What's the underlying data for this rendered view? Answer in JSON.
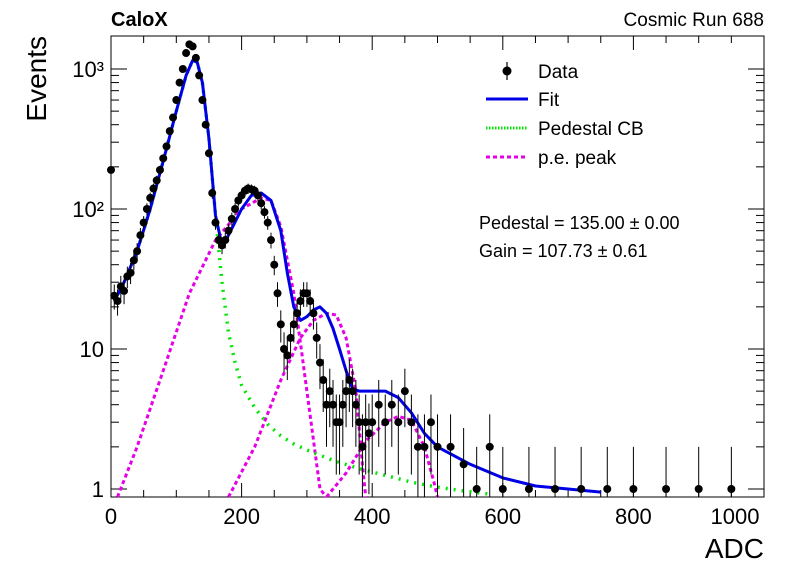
{
  "header": {
    "experiment": "CaloX",
    "run_label": "Cosmic Run 688"
  },
  "fit_results": {
    "pedestal": "Pedestal = 135.00 ± 0.00",
    "gain": "Gain = 107.73 ± 0.61"
  },
  "colors": {
    "data": "#000000",
    "fit": "#0000e6",
    "pedestal": "#00e600",
    "pe_peak": "#e600e6"
  },
  "chart_data": {
    "type": "scatter",
    "title": "",
    "xlabel": "ADC",
    "ylabel": "Events",
    "xlim": [
      0,
      1000
    ],
    "ylim": [
      0.9,
      1800
    ],
    "yscale": "log",
    "grid": false,
    "legend_position": "top-right",
    "x_ticks": [
      "0",
      "200",
      "400",
      "600",
      "800",
      "1000"
    ],
    "y_ticks": [
      "1",
      "10",
      "10²",
      "10³"
    ],
    "legend": [
      {
        "label": "Data",
        "style": "marker"
      },
      {
        "label": "Fit",
        "style": "solid"
      },
      {
        "label": "Pedestal CB",
        "style": "dotted"
      },
      {
        "label": "p.e. peak",
        "style": "dashed"
      }
    ],
    "data_series": {
      "name": "Data",
      "points": [
        [
          0,
          190
        ],
        [
          5,
          24
        ],
        [
          10,
          22
        ],
        [
          15,
          28
        ],
        [
          20,
          26
        ],
        [
          25,
          33
        ],
        [
          30,
          35
        ],
        [
          35,
          43
        ],
        [
          40,
          50
        ],
        [
          45,
          65
        ],
        [
          50,
          80
        ],
        [
          55,
          100
        ],
        [
          60,
          120
        ],
        [
          65,
          140
        ],
        [
          70,
          160
        ],
        [
          75,
          190
        ],
        [
          80,
          230
        ],
        [
          85,
          280
        ],
        [
          90,
          360
        ],
        [
          95,
          450
        ],
        [
          100,
          600
        ],
        [
          105,
          800
        ],
        [
          110,
          1000
        ],
        [
          115,
          1300
        ],
        [
          120,
          1500
        ],
        [
          125,
          1450
        ],
        [
          130,
          1200
        ],
        [
          135,
          900
        ],
        [
          140,
          600
        ],
        [
          145,
          400
        ],
        [
          150,
          250
        ],
        [
          155,
          130
        ],
        [
          160,
          80
        ],
        [
          165,
          60
        ],
        [
          170,
          55
        ],
        [
          175,
          60
        ],
        [
          180,
          70
        ],
        [
          185,
          85
        ],
        [
          190,
          100
        ],
        [
          195,
          115
        ],
        [
          200,
          125
        ],
        [
          205,
          135
        ],
        [
          210,
          140
        ],
        [
          215,
          138
        ],
        [
          220,
          135
        ],
        [
          225,
          125
        ],
        [
          230,
          110
        ],
        [
          235,
          95
        ],
        [
          240,
          80
        ],
        [
          245,
          60
        ],
        [
          250,
          40
        ],
        [
          255,
          25
        ],
        [
          260,
          15
        ],
        [
          265,
          10
        ],
        [
          270,
          9
        ],
        [
          275,
          12
        ],
        [
          280,
          15
        ],
        [
          285,
          18
        ],
        [
          290,
          22
        ],
        [
          295,
          25
        ],
        [
          300,
          25
        ],
        [
          305,
          22
        ],
        [
          310,
          18
        ],
        [
          315,
          12
        ],
        [
          320,
          8
        ],
        [
          325,
          6
        ],
        [
          330,
          4
        ],
        [
          335,
          5
        ],
        [
          340,
          4
        ],
        [
          345,
          3
        ],
        [
          350,
          3
        ],
        [
          355,
          4
        ],
        [
          360,
          5
        ],
        [
          365,
          6
        ],
        [
          370,
          5
        ],
        [
          375,
          4
        ],
        [
          380,
          3
        ],
        [
          385,
          2
        ],
        [
          390,
          3
        ],
        [
          395,
          2.5
        ],
        [
          400,
          3
        ],
        [
          410,
          4
        ],
        [
          420,
          3
        ],
        [
          430,
          4
        ],
        [
          440,
          3
        ],
        [
          450,
          5
        ],
        [
          460,
          3
        ],
        [
          470,
          2
        ],
        [
          480,
          2
        ],
        [
          490,
          3
        ],
        [
          500,
          2
        ],
        [
          520,
          2
        ],
        [
          540,
          1.5
        ],
        [
          560,
          1
        ],
        [
          580,
          2
        ],
        [
          600,
          1
        ],
        [
          640,
          1
        ],
        [
          680,
          1
        ],
        [
          720,
          1
        ],
        [
          760,
          1
        ],
        [
          800,
          1
        ],
        [
          850,
          1
        ],
        [
          900,
          1
        ],
        [
          950,
          1
        ]
      ]
    },
    "fit_curve": {
      "name": "Fit",
      "points": [
        [
          5,
          22
        ],
        [
          20,
          30
        ],
        [
          40,
          50
        ],
        [
          60,
          100
        ],
        [
          80,
          220
        ],
        [
          100,
          500
        ],
        [
          115,
          900
        ],
        [
          125,
          1150
        ],
        [
          132,
          1120
        ],
        [
          140,
          800
        ],
        [
          150,
          320
        ],
        [
          160,
          90
        ],
        [
          170,
          55
        ],
        [
          180,
          65
        ],
        [
          200,
          100
        ],
        [
          215,
          125
        ],
        [
          230,
          130
        ],
        [
          245,
          115
        ],
        [
          260,
          70
        ],
        [
          270,
          35
        ],
        [
          280,
          20
        ],
        [
          290,
          16
        ],
        [
          300,
          17
        ],
        [
          310,
          19
        ],
        [
          320,
          20
        ],
        [
          330,
          18
        ],
        [
          340,
          14
        ],
        [
          350,
          10
        ],
        [
          360,
          7
        ],
        [
          370,
          5.2
        ],
        [
          380,
          5
        ],
        [
          400,
          5
        ],
        [
          420,
          5
        ],
        [
          440,
          4.5
        ],
        [
          460,
          3.5
        ],
        [
          480,
          2.5
        ],
        [
          500,
          2
        ],
        [
          550,
          1.5
        ],
        [
          600,
          1.2
        ],
        [
          650,
          1.05
        ],
        [
          700,
          1
        ],
        [
          750,
          0.95
        ]
      ]
    },
    "pedestal_curve": {
      "name": "Pedestal CB",
      "points": [
        [
          5,
          22
        ],
        [
          20,
          30
        ],
        [
          40,
          50
        ],
        [
          60,
          100
        ],
        [
          80,
          220
        ],
        [
          100,
          500
        ],
        [
          115,
          900
        ],
        [
          125,
          1150
        ],
        [
          132,
          1120
        ],
        [
          140,
          800
        ],
        [
          150,
          320
        ],
        [
          160,
          90
        ],
        [
          170,
          30
        ],
        [
          180,
          13
        ],
        [
          190,
          8
        ],
        [
          200,
          5.5
        ],
        [
          220,
          3.8
        ],
        [
          240,
          2.9
        ],
        [
          260,
          2.4
        ],
        [
          280,
          2.1
        ],
        [
          300,
          1.9
        ],
        [
          340,
          1.6
        ],
        [
          380,
          1.4
        ],
        [
          420,
          1.25
        ],
        [
          460,
          1.12
        ],
        [
          500,
          1.03
        ],
        [
          540,
          0.97
        ],
        [
          580,
          0.92
        ]
      ]
    },
    "pe_peaks": [
      {
        "name": "p.e. peak 1",
        "points": [
          [
            10,
            0.85
          ],
          [
            40,
            2
          ],
          [
            80,
            7
          ],
          [
            120,
            25
          ],
          [
            160,
            60
          ],
          [
            200,
            100
          ],
          [
            230,
            120
          ],
          [
            245,
            115
          ],
          [
            260,
            75
          ],
          [
            280,
            25
          ],
          [
            300,
            5
          ],
          [
            320,
            1
          ],
          [
            330,
            0.85
          ]
        ]
      },
      {
        "name": "p.e. peak 2",
        "points": [
          [
            180,
            0.85
          ],
          [
            220,
            2
          ],
          [
            260,
            6
          ],
          [
            290,
            12
          ],
          [
            310,
            16
          ],
          [
            330,
            18
          ],
          [
            345,
            17.5
          ],
          [
            360,
            12
          ],
          [
            375,
            5
          ],
          [
            385,
            1.5
          ],
          [
            390,
            0.85
          ]
        ]
      },
      {
        "name": "p.e. peak 3",
        "points": [
          [
            330,
            0.85
          ],
          [
            360,
            1.3
          ],
          [
            390,
            2.2
          ],
          [
            420,
            3
          ],
          [
            440,
            3.3
          ],
          [
            460,
            3.1
          ],
          [
            480,
            2
          ],
          [
            495,
            1.1
          ],
          [
            500,
            0.85
          ]
        ]
      }
    ]
  }
}
